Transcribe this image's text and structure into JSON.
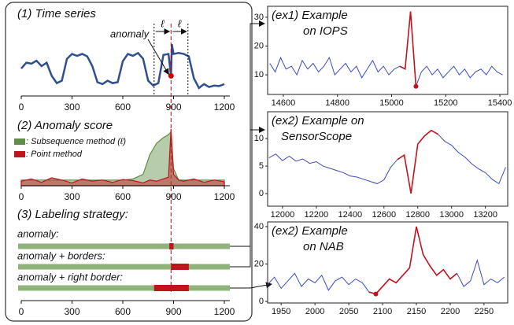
{
  "chart_data": [
    {
      "type": "line",
      "title": "(1) Time series",
      "xlim": [
        0,
        1200
      ],
      "xticks": [
        0,
        300,
        600,
        900,
        1200
      ],
      "ylim": [
        0,
        1.1
      ],
      "x": [
        0,
        30,
        60,
        90,
        120,
        150,
        180,
        210,
        240,
        270,
        300,
        330,
        360,
        390,
        420,
        450,
        480,
        510,
        540,
        570,
        600,
        630,
        660,
        690,
        720,
        750,
        780,
        810,
        840,
        870,
        885,
        890,
        900,
        930,
        960,
        990,
        1020,
        1050,
        1080,
        1110,
        1140,
        1170,
        1200
      ],
      "series": [
        {
          "color": "#2f4f8f",
          "values": [
            0.5,
            0.62,
            0.6,
            0.66,
            0.55,
            0.62,
            0.35,
            0.2,
            0.25,
            0.7,
            0.8,
            0.76,
            0.8,
            0.75,
            0.55,
            0.22,
            0.18,
            0.25,
            0.2,
            0.22,
            0.65,
            0.8,
            0.76,
            0.82,
            0.7,
            0.25,
            0.15,
            0.2,
            0.78,
            0.8,
            0.35,
            1.0,
            0.8,
            0.82,
            0.8,
            0.75,
            0.3,
            0.1,
            0.18,
            0.12,
            0.15,
            0.14,
            0.18
          ]
        }
      ],
      "anomaly_label": "anomaly",
      "anomaly_x": 885,
      "anomaly_value": 0.35,
      "anomaly_color": "#d00000",
      "window_label": "ℓ",
      "window_bounds": [
        785,
        985
      ]
    },
    {
      "type": "area",
      "title": "(2) Anomaly score",
      "xlim": [
        0,
        1200
      ],
      "xticks": [
        0,
        300,
        600,
        900,
        1200
      ],
      "ylim": [
        0,
        1
      ],
      "x": [
        0,
        60,
        120,
        180,
        240,
        300,
        360,
        420,
        480,
        540,
        600,
        660,
        720,
        760,
        800,
        840,
        870,
        885,
        900,
        930,
        960,
        1020,
        1080,
        1140,
        1200
      ],
      "series": [
        {
          "name": ": Subsequence method (ℓ)",
          "color": "#5f8f45",
          "values": [
            0.1,
            0.1,
            0.1,
            0.1,
            0.1,
            0.1,
            0.1,
            0.1,
            0.1,
            0.1,
            0.1,
            0.12,
            0.2,
            0.55,
            0.75,
            0.85,
            0.9,
            0.95,
            0.3,
            0.1,
            0.1,
            0.1,
            0.1,
            0.1,
            0.1
          ]
        },
        {
          "name": ": Point method",
          "color": "#c0141e",
          "values": [
            0.08,
            0.12,
            0.06,
            0.14,
            0.1,
            0.05,
            0.12,
            0.08,
            0.1,
            0.06,
            0.11,
            0.09,
            0.05,
            0.1,
            0.08,
            0.12,
            0.15,
            1.0,
            0.2,
            0.1,
            0.08,
            0.12,
            0.06,
            0.1,
            0.07
          ]
        }
      ]
    },
    {
      "type": "timeline",
      "title": "(3) Labeling strategy:",
      "xlim": [
        0,
        1200
      ],
      "xticks": [
        0,
        300,
        600,
        900,
        1200
      ],
      "color": "#8fb37a",
      "segment_color": "#c0141e",
      "rows": [
        {
          "label": "anomaly:",
          "segments": [
            [
              875,
              900
            ]
          ]
        },
        {
          "label": "anomaly + borders:",
          "segments": [
            [
              885,
              990
            ]
          ]
        },
        {
          "label": "anomaly + right border:",
          "segments": [
            [
              785,
              990
            ]
          ]
        }
      ]
    },
    {
      "type": "line",
      "title": [
        "(ex1) Example",
        "on IOPS"
      ],
      "xlim": [
        14542,
        15429
      ],
      "ylim": [
        3.2,
        33.8
      ],
      "xticks": [
        14600,
        14800,
        15000,
        15200,
        15400
      ],
      "yticks": [
        10,
        20,
        30
      ],
      "markers": true,
      "x": [
        14550,
        14570,
        14590,
        14610,
        14630,
        14650,
        14670,
        14690,
        14710,
        14730,
        14750,
        14770,
        14790,
        14810,
        14830,
        14850,
        14870,
        14890,
        14910,
        14930,
        14950,
        14970,
        14990,
        15010,
        15030,
        15050,
        15070,
        15090,
        15110,
        15130,
        15150,
        15170,
        15190,
        15210,
        15230,
        15250,
        15270,
        15290,
        15310,
        15330,
        15350,
        15370,
        15390,
        15410
      ],
      "series": [
        {
          "color": "#3b4cc0",
          "values": [
            14,
            11,
            16,
            12,
            13,
            10,
            15,
            12,
            14,
            11,
            13,
            16,
            10,
            12,
            14,
            11,
            13,
            9,
            12,
            15,
            11,
            13,
            10,
            12,
            13,
            12,
            32,
            6,
            11,
            13,
            10,
            12,
            9,
            11,
            13,
            10,
            12,
            9,
            11,
            12,
            10,
            13,
            11,
            10
          ]
        },
        {
          "color": "#c0141e",
          "values": [
            null,
            null,
            null,
            null,
            null,
            null,
            null,
            null,
            null,
            null,
            null,
            null,
            null,
            null,
            null,
            null,
            null,
            null,
            null,
            null,
            null,
            null,
            null,
            null,
            13,
            12,
            32,
            6,
            null,
            null,
            null,
            null,
            null,
            null,
            null,
            null,
            null,
            null,
            null,
            null,
            null,
            null,
            null,
            null
          ]
        }
      ]
    },
    {
      "type": "line",
      "title": [
        "(ex2) Example on",
        "SensorScope"
      ],
      "xlim": [
        11912,
        13332
      ],
      "ylim": [
        -2.3,
        14.9
      ],
      "xticks": [
        12000,
        12200,
        12400,
        12600,
        12800,
        13000,
        13200
      ],
      "yticks": [
        0,
        5,
        10
      ],
      "markers": false,
      "x": [
        11920,
        11960,
        12000,
        12040,
        12080,
        12120,
        12160,
        12200,
        12240,
        12280,
        12320,
        12360,
        12400,
        12440,
        12480,
        12520,
        12560,
        12600,
        12640,
        12680,
        12720,
        12760,
        12800,
        12840,
        12880,
        12920,
        12960,
        13000,
        13040,
        13080,
        13120,
        13160,
        13200,
        13240,
        13280,
        13320
      ],
      "series": [
        {
          "color": "#3b4cc0",
          "values": [
            6.5,
            7.2,
            6.0,
            6.8,
            5.9,
            6.3,
            5.5,
            5.8,
            5.0,
            4.6,
            4.2,
            3.8,
            3.2,
            3.0,
            2.6,
            2.2,
            1.8,
            2.5,
            4.8,
            6.2,
            7.0,
            0.0,
            9.0,
            10.5,
            11.5,
            10.8,
            9.5,
            8.8,
            7.5,
            6.6,
            5.4,
            4.5,
            3.8,
            2.6,
            1.8,
            4.8
          ]
        },
        {
          "color": "#c0141e",
          "values": [
            null,
            null,
            null,
            null,
            null,
            null,
            null,
            null,
            null,
            null,
            null,
            null,
            null,
            null,
            null,
            null,
            null,
            null,
            null,
            6.2,
            7.0,
            0.0,
            9.0,
            10.5,
            11.5,
            10.8,
            null,
            null,
            null,
            null,
            null,
            null,
            null,
            null,
            null,
            null
          ]
        }
      ]
    },
    {
      "type": "line",
      "title": [
        "(ex2) Example",
        "on NAB"
      ],
      "xlim": [
        1930,
        2285
      ],
      "ylim": [
        -0.8,
        42.5
      ],
      "xticks": [
        1950,
        2000,
        2050,
        2100,
        2150,
        2200,
        2250
      ],
      "yticks": [
        0,
        20,
        40
      ],
      "markers": true,
      "x": [
        1930,
        1940,
        1950,
        1960,
        1970,
        1980,
        1990,
        2000,
        2010,
        2020,
        2030,
        2040,
        2050,
        2060,
        2070,
        2080,
        2090,
        2100,
        2110,
        2120,
        2130,
        2140,
        2150,
        2160,
        2170,
        2180,
        2190,
        2200,
        2210,
        2220,
        2230,
        2240,
        2250,
        2260,
        2270,
        2280
      ],
      "series": [
        {
          "color": "#3b4cc0",
          "values": [
            9,
            13,
            7,
            11,
            15,
            8,
            12,
            10,
            14,
            6,
            11,
            13,
            9,
            12,
            10,
            5,
            4,
            8,
            12,
            10,
            14,
            18,
            40,
            25,
            19,
            14,
            17,
            12,
            15,
            8,
            11,
            22,
            9,
            12,
            10,
            13
          ]
        },
        {
          "color": "#c0141e",
          "values": [
            null,
            null,
            null,
            null,
            null,
            null,
            null,
            null,
            null,
            null,
            null,
            null,
            null,
            null,
            null,
            5,
            4,
            8,
            12,
            10,
            14,
            18,
            40,
            25,
            19,
            14,
            17,
            12,
            15,
            null,
            null,
            null,
            null,
            null,
            null,
            null
          ]
        }
      ]
    }
  ]
}
